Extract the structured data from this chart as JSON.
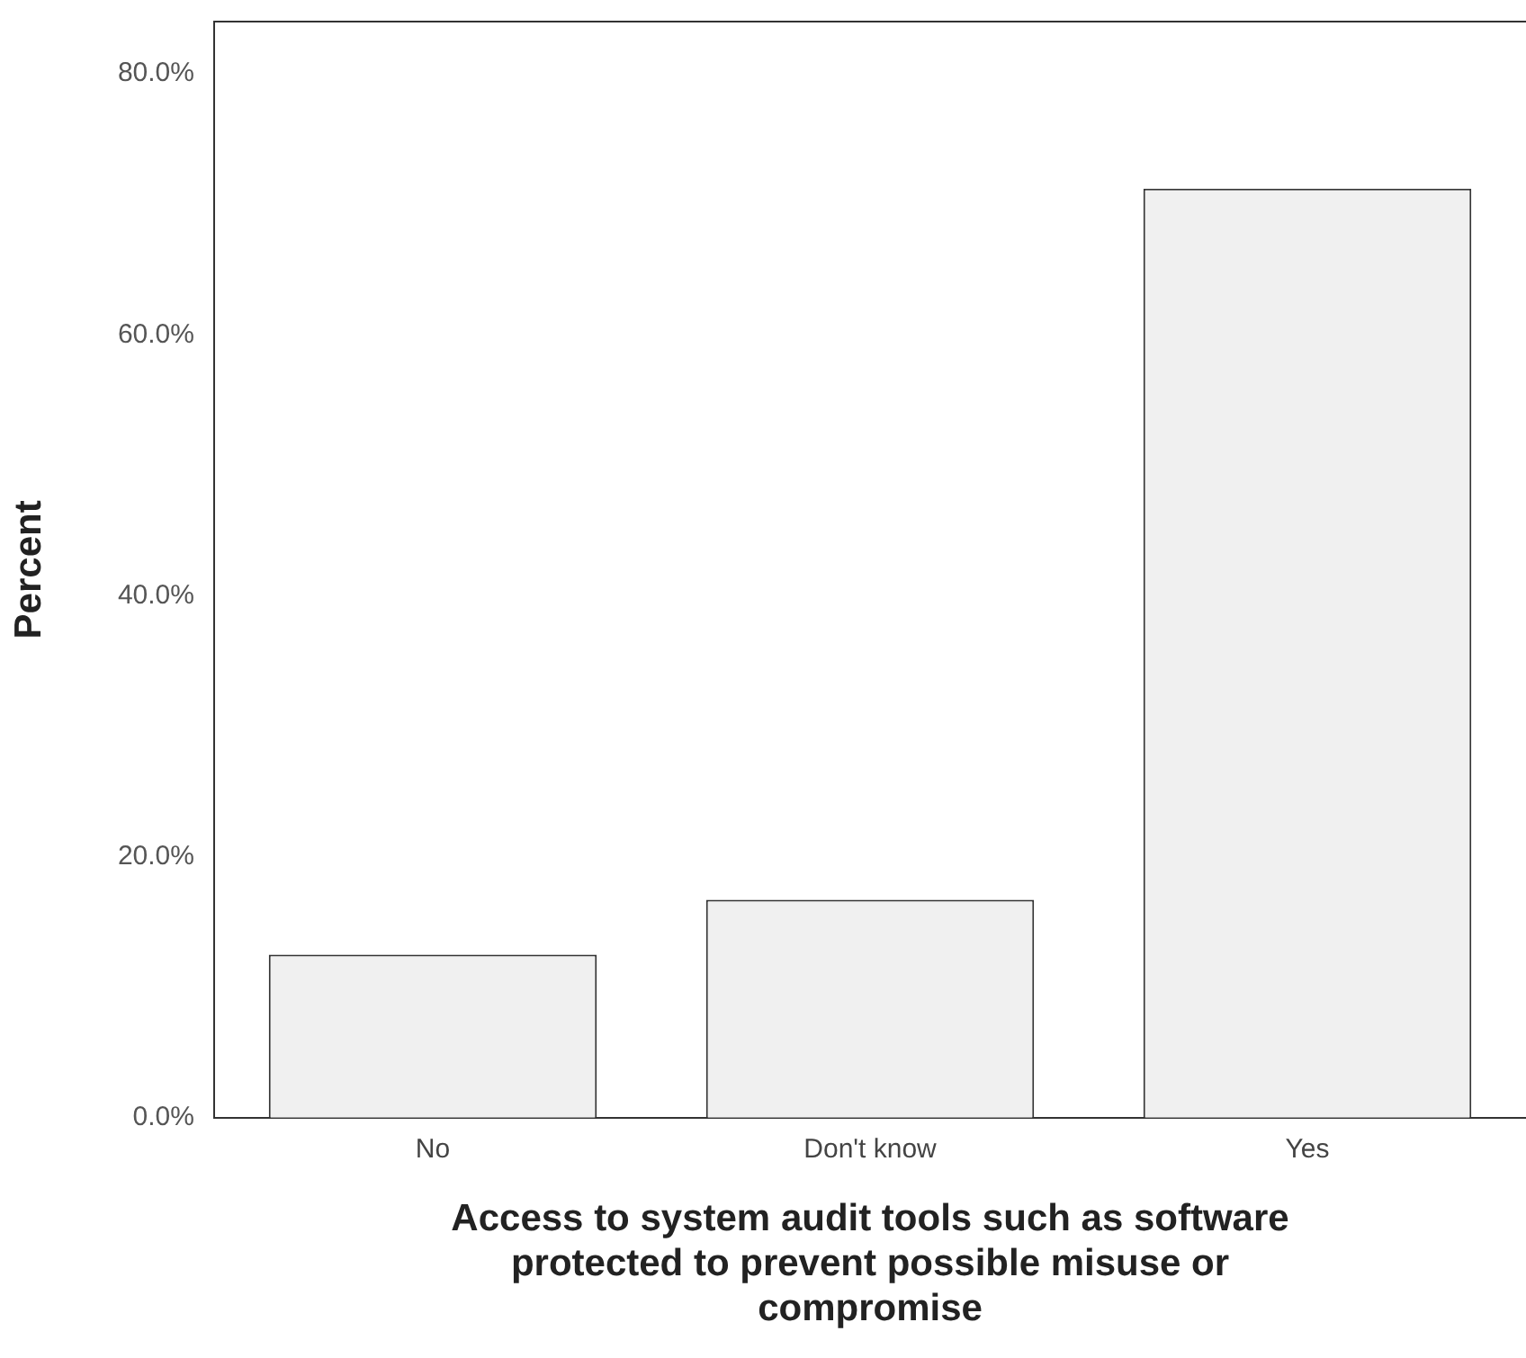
{
  "chart_data": {
    "type": "bar",
    "xlabel": "Access to system audit tools such as software\nprotected to prevent possible misuse or\ncompromise",
    "ylabel": "Percent",
    "categories": [
      "No",
      "Don't know",
      "Yes"
    ],
    "values": [
      12.5,
      16.7,
      71.2
    ],
    "color": "#f0f0f0",
    "ylim": [
      0,
      84
    ],
    "yticks": [
      {
        "value": 0,
        "label": "0.0%"
      },
      {
        "value": 20,
        "label": "20.0%"
      },
      {
        "value": 40,
        "label": "40.0%"
      },
      {
        "value": 60,
        "label": "60.0%"
      },
      {
        "value": 80,
        "label": "80.0%"
      }
    ],
    "grid": false
  }
}
